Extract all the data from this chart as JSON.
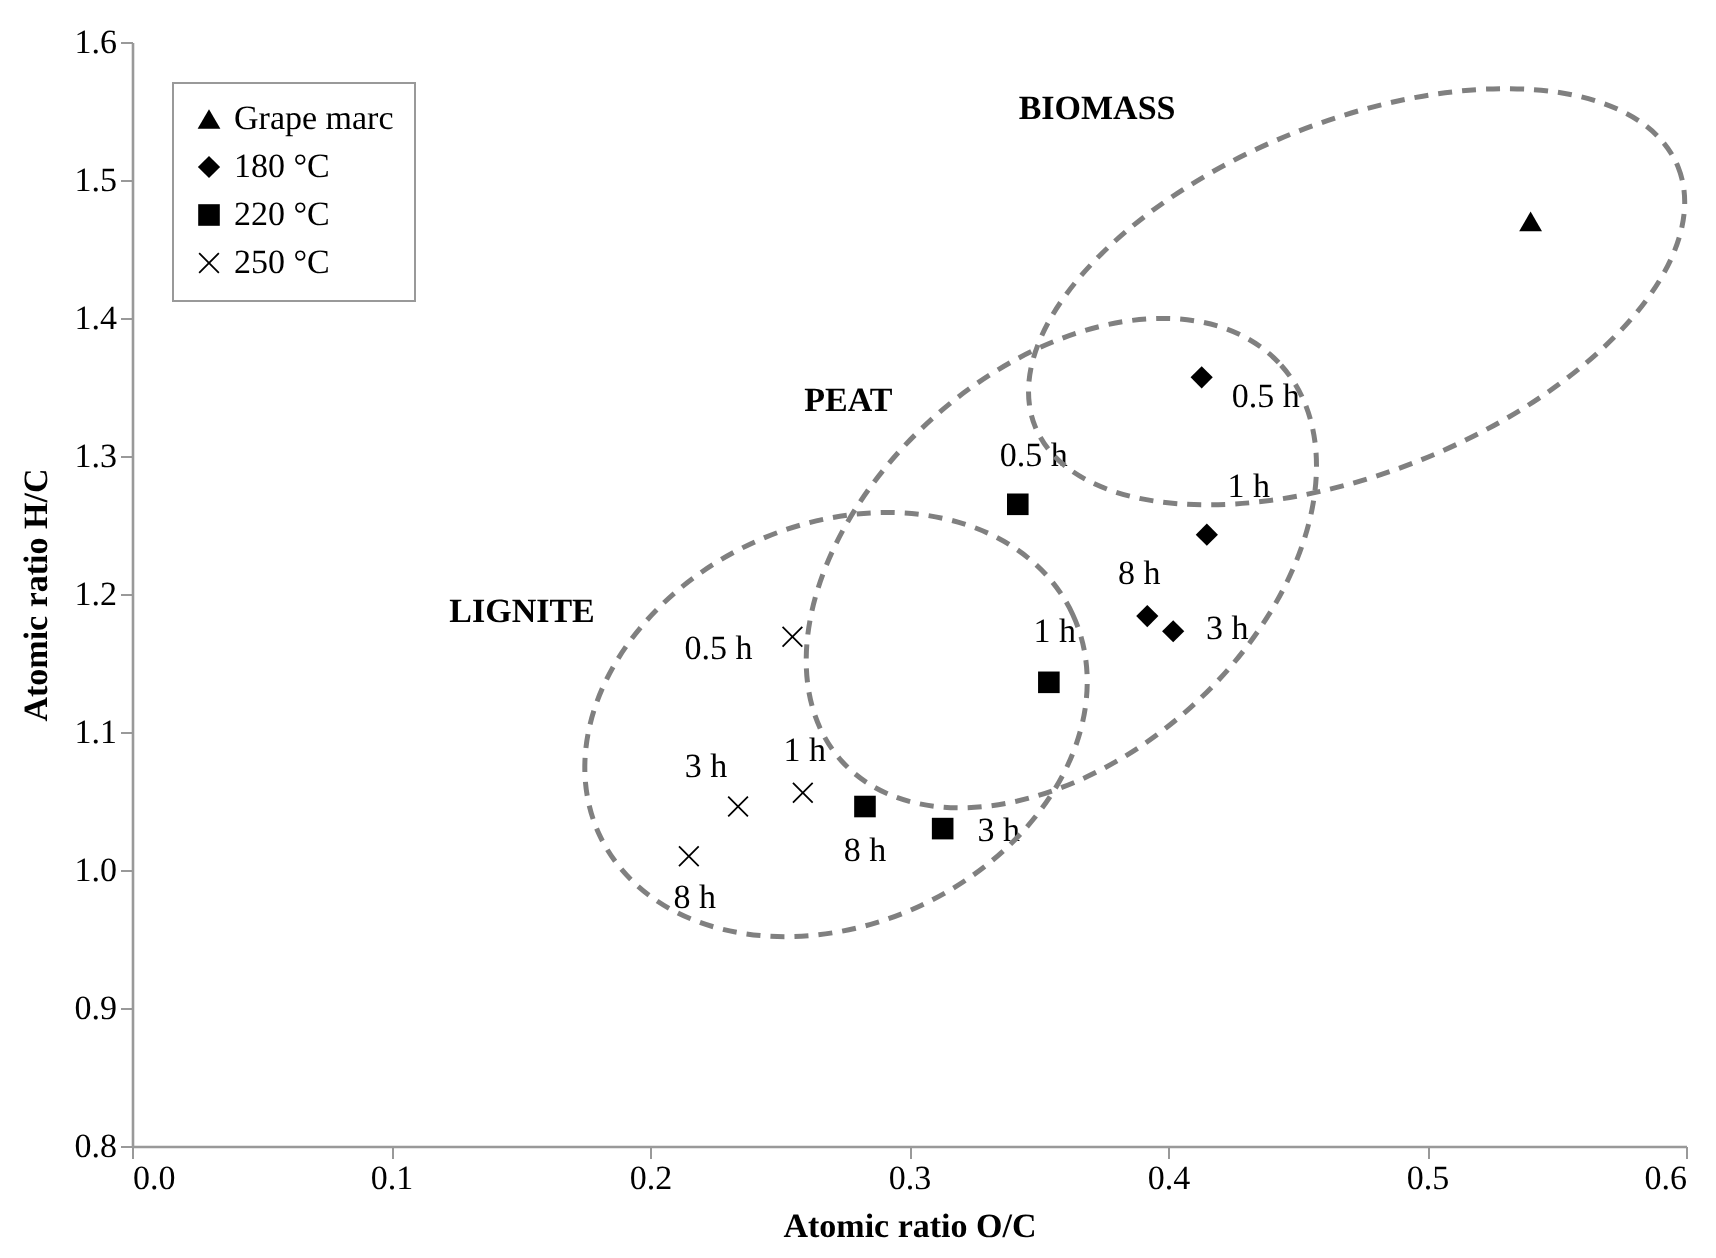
{
  "chart_data": {
    "type": "scatter",
    "xlabel": "Atomic ratio O/C",
    "ylabel": "Atomic ratio H/C",
    "xlim": [
      0,
      0.6
    ],
    "xticks": [
      {
        "value": 0,
        "label": "0.0"
      },
      {
        "value": 0.1,
        "label": "0.1"
      },
      {
        "value": 0.2,
        "label": "0.2"
      },
      {
        "value": 0.3,
        "label": "0.3"
      },
      {
        "value": 0.4,
        "label": "0.4"
      },
      {
        "value": 0.5,
        "label": "0.5"
      },
      {
        "value": 0.6,
        "label": "0.6"
      }
    ],
    "ylim": [
      0.8,
      1.6
    ],
    "yticks": [
      {
        "value": 0.8,
        "label": "0.8"
      },
      {
        "value": 0.9,
        "label": "0.9"
      },
      {
        "value": 1,
        "label": "1.0"
      },
      {
        "value": 1.1,
        "label": "1.1"
      },
      {
        "value": 1.2,
        "label": "1.2"
      },
      {
        "value": 1.3,
        "label": "1.3"
      },
      {
        "value": 1.4,
        "label": "1.4"
      },
      {
        "value": 1.5,
        "label": "1.5"
      },
      {
        "value": 1.6,
        "label": "1.6"
      }
    ],
    "grid": false,
    "legend": "top left",
    "series": [
      {
        "name": "Grape marc",
        "color": "#000000",
        "marker": "triangle",
        "x": [
          0.54
        ],
        "values": [
          1.47
        ]
      },
      {
        "name": "180 °C",
        "color": "#000000",
        "marker": "diamond",
        "x": [
          0.413,
          0.415,
          0.392,
          0.402
        ],
        "values": [
          1.357,
          1.243,
          1.184,
          1.173
        ]
      },
      {
        "name": "220 °C",
        "color": "#000000",
        "marker": "square",
        "x": [
          0.342,
          0.354,
          0.283,
          0.313
        ],
        "values": [
          1.265,
          1.136,
          1.046,
          1.03
        ]
      },
      {
        "name": "250 °C",
        "color": "#000000",
        "marker": "cross",
        "x": [
          0.255,
          0.259,
          0.234,
          0.215
        ],
        "values": [
          1.169,
          1.056,
          1.046,
          1.01
        ]
      }
    ],
    "annotations": [
      "BIOMASS",
      "PEAT",
      "LIGNITE",
      {
        "text": "0.5 h",
        "x": 0.413,
        "y": 1.357
      },
      {
        "text": "1 h",
        "x": 0.415,
        "y": 1.243
      },
      {
        "text": "8 h",
        "x": 0.392,
        "y": 1.184
      },
      {
        "text": "3 h",
        "x": 0.402,
        "y": 1.173
      },
      {
        "text": "0.5 h",
        "x": 0.342,
        "y": 1.265
      },
      {
        "text": "1 h",
        "x": 0.354,
        "y": 1.136
      },
      {
        "text": "8 h",
        "x": 0.283,
        "y": 1.046
      },
      {
        "text": "3 h",
        "x": 0.313,
        "y": 1.03
      },
      {
        "text": "0.5 h",
        "x": 0.255,
        "y": 1.169
      },
      {
        "text": "1 h",
        "x": 0.259,
        "y": 1.056
      },
      {
        "text": "3 h",
        "x": 0.234,
        "y": 1.046
      },
      {
        "text": "8 h",
        "x": 0.215,
        "y": 1.01
      }
    ]
  }
}
